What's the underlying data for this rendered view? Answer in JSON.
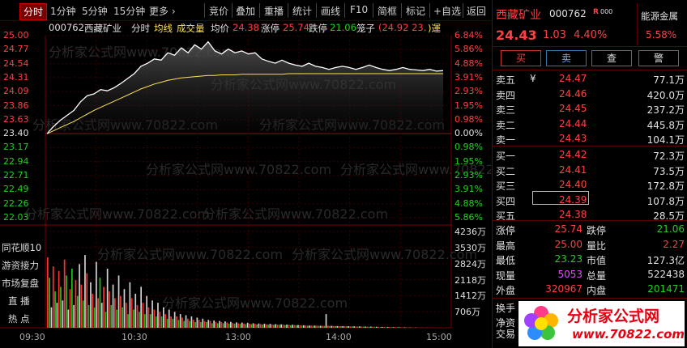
{
  "toolbar": {
    "tabs": [
      {
        "label": "分时",
        "active": true
      },
      {
        "label": "1分钟"
      },
      {
        "label": "5分钟"
      },
      {
        "label": "15分钟"
      },
      {
        "label": "更多 ›"
      }
    ],
    "buttons": [
      "竞价",
      "叠加",
      "重播",
      "统计",
      "画线",
      "F10",
      "简框",
      "标记",
      "+自选",
      "返回"
    ]
  },
  "chart_header": {
    "code": "000762",
    "name": "西藏矿业",
    "mode": "分时",
    "legend_avg": "均线",
    "legend_vol": "成交量",
    "avg_label": "均价",
    "avg_value": "24.38",
    "limit_up_label": "涨停",
    "limit_up_value": "25.74",
    "limit_down_label": "跌停",
    "limit_down_value": "21.06",
    "cage_label": "笼子",
    "cage_value": "(24.92 23.",
    "cage_tail": ")運"
  },
  "watermark": "分析家公式网www.70822.com",
  "chart_data": {
    "type": "line",
    "title": "",
    "series": [
      {
        "name": "",
        "color": "#ffffff",
        "values": [
          23.4,
          23.52,
          23.62,
          23.7,
          23.78,
          23.92,
          24.02,
          24.05,
          24.12,
          24.1,
          24.15,
          24.22,
          24.3,
          24.38,
          24.5,
          24.55,
          24.62,
          24.6,
          24.72,
          24.68,
          24.8,
          24.72,
          24.85,
          24.78,
          24.9,
          24.75,
          24.7,
          24.78,
          24.72,
          24.75,
          24.7,
          24.72,
          24.62,
          24.58,
          24.55,
          24.6,
          24.55,
          24.52,
          24.5,
          24.55,
          24.5,
          24.48,
          24.45,
          24.48,
          24.5,
          24.48,
          24.45,
          24.48,
          24.52,
          24.48,
          24.45,
          24.43,
          24.45,
          24.48,
          24.45,
          24.44,
          24.43,
          24.45,
          24.42,
          24.43
        ]
      },
      {
        "name": "均线",
        "color": "#ffe34d",
        "values": [
          23.4,
          23.45,
          23.5,
          23.55,
          23.6,
          23.66,
          23.72,
          23.78,
          23.83,
          23.88,
          23.93,
          23.98,
          24.03,
          24.08,
          24.13,
          24.17,
          24.21,
          24.24,
          24.27,
          24.29,
          24.31,
          24.32,
          24.33,
          24.34,
          24.35,
          24.35,
          24.36,
          24.36,
          24.36,
          24.37,
          24.37,
          24.37,
          24.37,
          24.37,
          24.37,
          24.37,
          24.38,
          24.38,
          24.38,
          24.38,
          24.38,
          24.38,
          24.38,
          24.38,
          24.38,
          24.38,
          24.38,
          24.38,
          24.38,
          24.38,
          24.38,
          24.38,
          24.38,
          24.38,
          24.38,
          24.38,
          24.38,
          24.38,
          24.38,
          24.38
        ]
      }
    ],
    "ylim": [
      22.03,
      25.0
    ],
    "price_ticks": [
      "25.00",
      "24.77",
      "24.54",
      "24.31",
      "24.09",
      "23.86",
      "23.63",
      "23.40",
      "23.17",
      "22.94",
      "22.71",
      "22.49",
      "22.26",
      "22.03"
    ],
    "pct_ticks": [
      "6.84%",
      "5.86%",
      "4.88%",
      "3.91%",
      "2.93%",
      "1.95%",
      "0.98%",
      "0.00%",
      "0.98%",
      "1.95%",
      "2.93%",
      "3.91%",
      "4.88%",
      "5.86%"
    ],
    "volume": {
      "ticks": [
        "4236万",
        "3530万",
        "2824万",
        "2118万",
        "1412万",
        "706万"
      ],
      "ylim": [
        0,
        4236
      ],
      "values": [
        3100,
        2200,
        900,
        2700,
        1600,
        1100,
        2500,
        1800,
        1200,
        3000,
        2300,
        800,
        1700,
        2600,
        1000,
        2100,
        1400,
        2800,
        1900,
        1200,
        3200,
        2400,
        1000,
        2000,
        1500,
        900,
        2900,
        1300,
        2200,
        1100,
        1800,
        700,
        2600,
        1600,
        1000,
        1900,
        1300,
        800,
        2300,
        1400,
        900,
        1700,
        1100,
        600,
        2000,
        1300,
        800,
        1500,
        1000,
        700,
        1800,
        1100,
        600,
        1400,
        900,
        600,
        1200,
        800,
        500,
        1100,
        700,
        500,
        900,
        600,
        400,
        800,
        500,
        400,
        700,
        500,
        350,
        600,
        450,
        300,
        550,
        400,
        300,
        500,
        350,
        250,
        450,
        350,
        250,
        400,
        300,
        250,
        350,
        300,
        200,
        320,
        260,
        200,
        300,
        250,
        200,
        280,
        230,
        180,
        260,
        210,
        180,
        240,
        200,
        170,
        230,
        190,
        160,
        220,
        180,
        160,
        200,
        170,
        150,
        190,
        160,
        140,
        180,
        150,
        140,
        170,
        150,
        130,
        160,
        140,
        130,
        150,
        140,
        120,
        140,
        130,
        110,
        130,
        120,
        110,
        120,
        110,
        100,
        110,
        100,
        90,
        100,
        95,
        90,
        95,
        90,
        85,
        90,
        85,
        80,
        600,
        90,
        80,
        85,
        80,
        75,
        80,
        75,
        70,
        75,
        70,
        65,
        70,
        65,
        60,
        65,
        60,
        55,
        60,
        55,
        50,
        55,
        50,
        45,
        50,
        45,
        40,
        45,
        40,
        35,
        40,
        35,
        30,
        35,
        30,
        25,
        30,
        25,
        20,
        25,
        20,
        15,
        20,
        15,
        10,
        15,
        10,
        5,
        10,
        5,
        3,
        5,
        3,
        2,
        3,
        2,
        1,
        2,
        1,
        1,
        1,
        1,
        1
      ],
      "colors": [
        "red",
        "green",
        "white"
      ]
    },
    "x_ticks": [
      "09:30",
      "10:30",
      "13:00",
      "14:00",
      "15:00"
    ]
  },
  "side_buttons": [
    "同花顺10",
    "游资接力",
    "市场复盘",
    "直  播",
    "热  点"
  ],
  "right_panel": {
    "name": "西藏矿业",
    "code": "000762",
    "code_badge": "R",
    "code_suffix": "000",
    "sector": "能源金属",
    "price": "24.43",
    "change": "1.03",
    "change_pct": "4.40%",
    "sector_pct": "5.58%",
    "actions": [
      "买",
      "卖",
      "查",
      "警"
    ],
    "asks": [
      {
        "label": "卖五",
        "mark": "¥",
        "price": "24.47",
        "vol": "77.1万"
      },
      {
        "label": "卖四",
        "mark": "",
        "price": "24.46",
        "vol": "420.0万"
      },
      {
        "label": "卖三",
        "mark": "",
        "price": "24.45",
        "vol": "237.2万"
      },
      {
        "label": "卖二",
        "mark": "",
        "price": "24.44",
        "vol": "445.8万"
      },
      {
        "label": "卖一",
        "mark": "",
        "price": "24.43",
        "vol": "104.1万"
      }
    ],
    "bids": [
      {
        "label": "买一",
        "price": "24.42",
        "vol": "72.3万"
      },
      {
        "label": "买二",
        "price": "24.41",
        "vol": "73.5万"
      },
      {
        "label": "买三",
        "price": "24.40",
        "vol": "172.8万"
      },
      {
        "label": "买四",
        "price": "24.39",
        "vol": "107.8万"
      },
      {
        "label": "买五",
        "price": "24.38",
        "vol": "28.5万"
      }
    ],
    "stats": [
      {
        "l1": "涨停",
        "v1": "25.74",
        "l2": "跌停",
        "v2": "21.06"
      },
      {
        "l1": "最高",
        "v1": "25.00",
        "l2": "量比",
        "v2": "2.27"
      },
      {
        "l1": "最低",
        "v1": "23.23",
        "l2": "市值",
        "v2": "127.3亿"
      },
      {
        "l1": "现量",
        "v1": "5053",
        "l2": "总量",
        "v2": "522438"
      },
      {
        "l1": "外盘",
        "v1": "320967",
        "l2": "内盘",
        "v2": "201471"
      }
    ],
    "bottom_labels": [
      "换手",
      "净资",
      "交易"
    ]
  },
  "logo": {
    "title": "分析家公式网",
    "url": "www.70822.com"
  }
}
